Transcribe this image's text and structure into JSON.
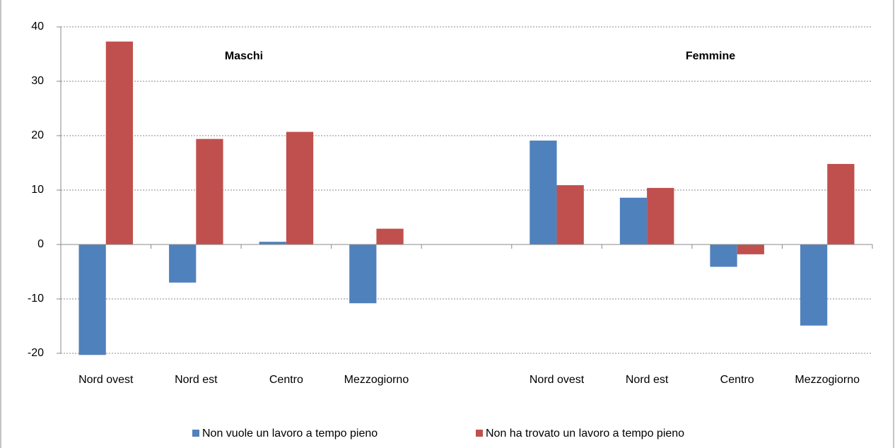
{
  "chart_data": {
    "type": "bar",
    "annotations": [
      "Maschi",
      "Femmine"
    ],
    "categories": [
      "Nord ovest",
      "Nord est",
      "Centro",
      "Mezzogiorno",
      null,
      "Nord ovest",
      "Nord est",
      "Centro",
      "Mezzogiorno"
    ],
    "series": [
      {
        "name": "Non vuole un lavoro a tempo pieno",
        "color": "#4f81bd",
        "values": [
          -20.3,
          -7,
          0.5,
          -10.8,
          null,
          19.1,
          8.6,
          -4.1,
          -14.9
        ]
      },
      {
        "name": "Non ha trovato un lavoro a tempo pieno",
        "color": "#c0504d",
        "values": [
          37.3,
          19.4,
          20.7,
          2.9,
          null,
          10.9,
          10.4,
          -1.8,
          14.8
        ]
      }
    ],
    "ylim": [
      -20,
      40
    ],
    "yticks": [
      -20,
      -10,
      0,
      10,
      20,
      30,
      40
    ],
    "grid": true,
    "legend": "bottom"
  }
}
